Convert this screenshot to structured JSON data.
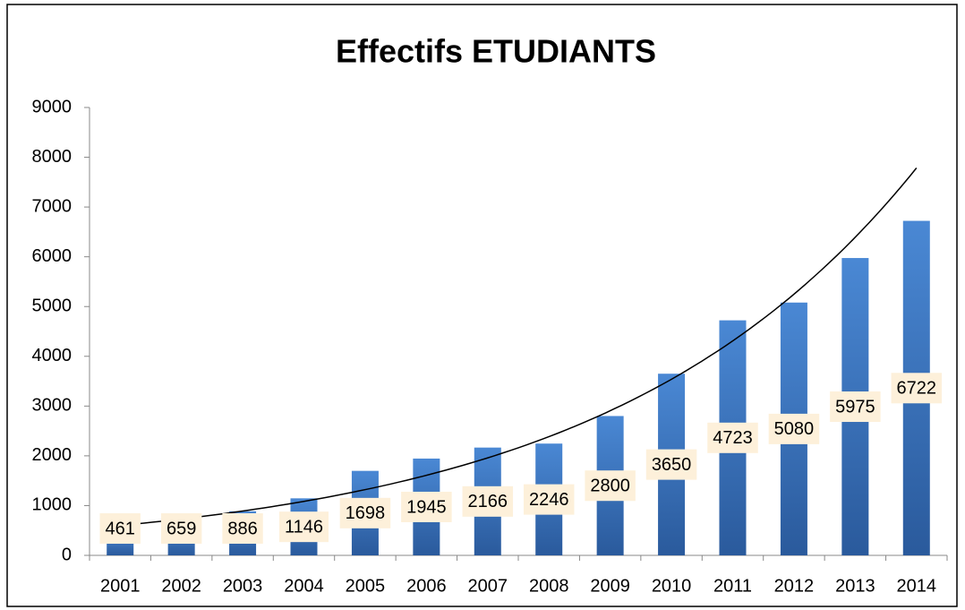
{
  "chart_data": {
    "type": "bar",
    "title": "Effectifs ETUDIANTS",
    "categories": [
      "2001",
      "2002",
      "2003",
      "2004",
      "2005",
      "2006",
      "2007",
      "2008",
      "2009",
      "2010",
      "2011",
      "2012",
      "2013",
      "2014"
    ],
    "values": [
      461,
      659,
      886,
      1146,
      1698,
      1945,
      2166,
      2246,
      2800,
      3650,
      4723,
      5080,
      5975,
      6722
    ],
    "color": "#3a74c0",
    "ylim": [
      0,
      9000
    ],
    "yticks": [
      0,
      1000,
      2000,
      3000,
      4000,
      5000,
      6000,
      7000,
      8000,
      9000
    ],
    "grid": false,
    "trendline": "exponential"
  }
}
